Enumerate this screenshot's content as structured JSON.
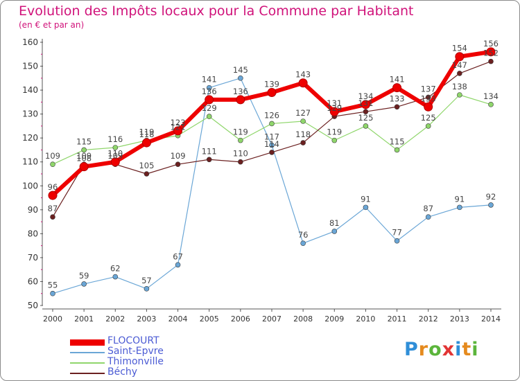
{
  "chart_data": {
    "type": "line",
    "title": "Evolution des Impôts locaux pour la Commune par Habitant",
    "subtitle": "(en € et par an)",
    "xlabel": "",
    "ylabel": "",
    "x": [
      "2000",
      "2001",
      "2002",
      "2003",
      "2004",
      "2005",
      "2006",
      "2007",
      "2008",
      "2009",
      "2010",
      "2011",
      "2012",
      "2013",
      "2014"
    ],
    "ylim": [
      50,
      160
    ],
    "yticks": [
      "50",
      "60",
      "70",
      "80",
      "90",
      "100",
      "110",
      "120",
      "130",
      "140",
      "150",
      "160"
    ],
    "grid": false,
    "legend_position": "bottom-left",
    "series": [
      {
        "name": "FLOCOURT",
        "color": "#ee0000",
        "values": [
          96,
          108,
          110,
          118,
          123,
          136,
          136,
          139,
          143,
          131,
          134,
          141,
          133,
          154,
          156
        ],
        "labels": [
          "96",
          "108",
          "110",
          "118",
          "123",
          "136",
          "136",
          "139",
          "143",
          "131",
          "134",
          "141",
          "133",
          "154",
          "156"
        ]
      },
      {
        "name": "Saint-Epvre",
        "color": "#6aa6d6",
        "values": [
          55,
          59,
          62,
          57,
          67,
          141,
          145,
          117,
          76,
          81,
          91,
          77,
          87,
          91,
          92
        ],
        "labels": [
          "55",
          "59",
          "62",
          "57",
          "67",
          "141",
          "145",
          "117",
          "76",
          "81",
          "91",
          "77",
          "87",
          "91",
          "92"
        ]
      },
      {
        "name": "Thimonville",
        "color": "#8fd66b",
        "values": [
          109,
          115,
          116,
          119,
          121,
          129,
          119,
          126,
          127,
          119,
          125,
          115,
          125,
          138,
          134
        ],
        "labels": [
          "109",
          "115",
          "116",
          "119",
          "121",
          "129",
          "119",
          "126",
          "127",
          "119",
          "125",
          "115",
          "125",
          "138",
          "134"
        ]
      },
      {
        "name": "Béchy",
        "color": "#6b2020",
        "values": [
          87,
          109,
          109,
          105,
          109,
          111,
          110,
          114,
          118,
          129,
          131,
          133,
          137,
          147,
          152
        ],
        "labels": [
          "87",
          "109",
          "109",
          "105",
          "109",
          "111",
          "110",
          "114",
          "118",
          "129",
          "131",
          "133",
          "137",
          "147",
          "152"
        ]
      }
    ]
  },
  "branding": {
    "logo_text": "Proxiti",
    "letters": [
      "P",
      "r",
      "o",
      "x",
      "i",
      "t",
      "i"
    ],
    "letter_colors": [
      "#2f8ed8",
      "#e58a1e",
      "#5bb53b",
      "#e23434",
      "#2f8ed8",
      "#e58a1e",
      "#5bb53b"
    ]
  },
  "legend_label_color": "#4b5bd4"
}
